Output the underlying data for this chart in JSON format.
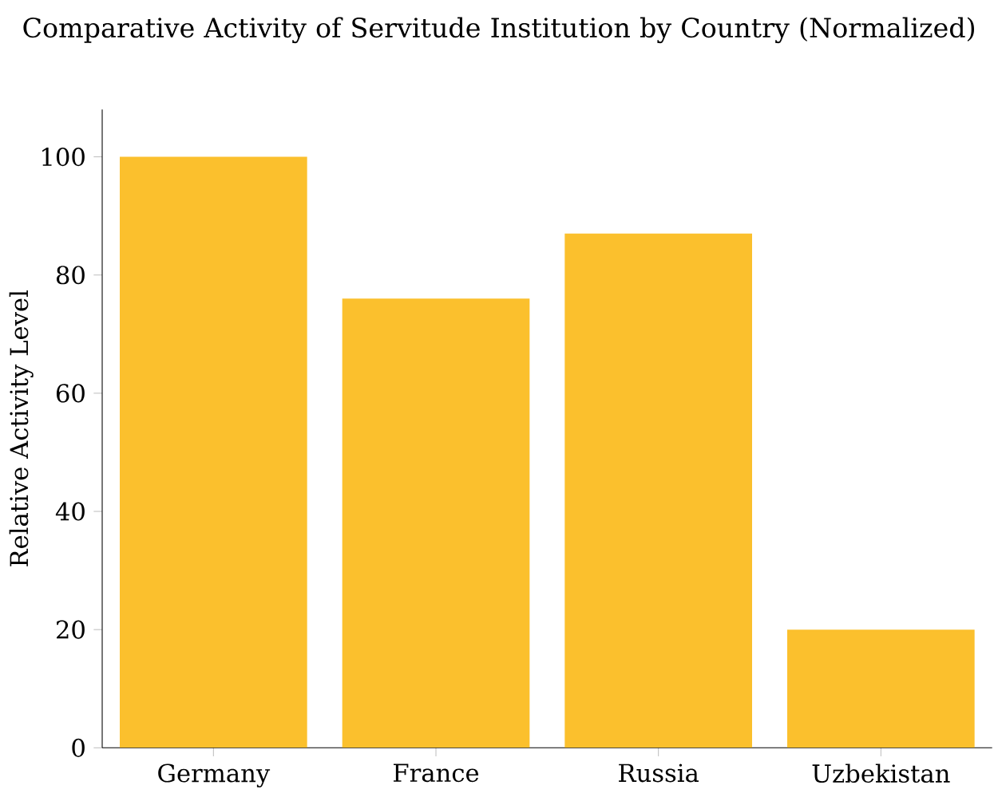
{
  "chart_data": {
    "type": "bar",
    "title": "Comparative Activity of Servitude Institution by Country (Normalized)",
    "ylabel": "Relative Activity Level",
    "categories": [
      "Germany",
      "France",
      "Russia",
      "Uzbekistan"
    ],
    "values": [
      100,
      76,
      87,
      20
    ],
    "color": "#fbc02d",
    "ylim": [
      0,
      108
    ],
    "yticks": [
      0,
      20,
      40,
      60,
      80,
      100
    ],
    "grid": false
  }
}
